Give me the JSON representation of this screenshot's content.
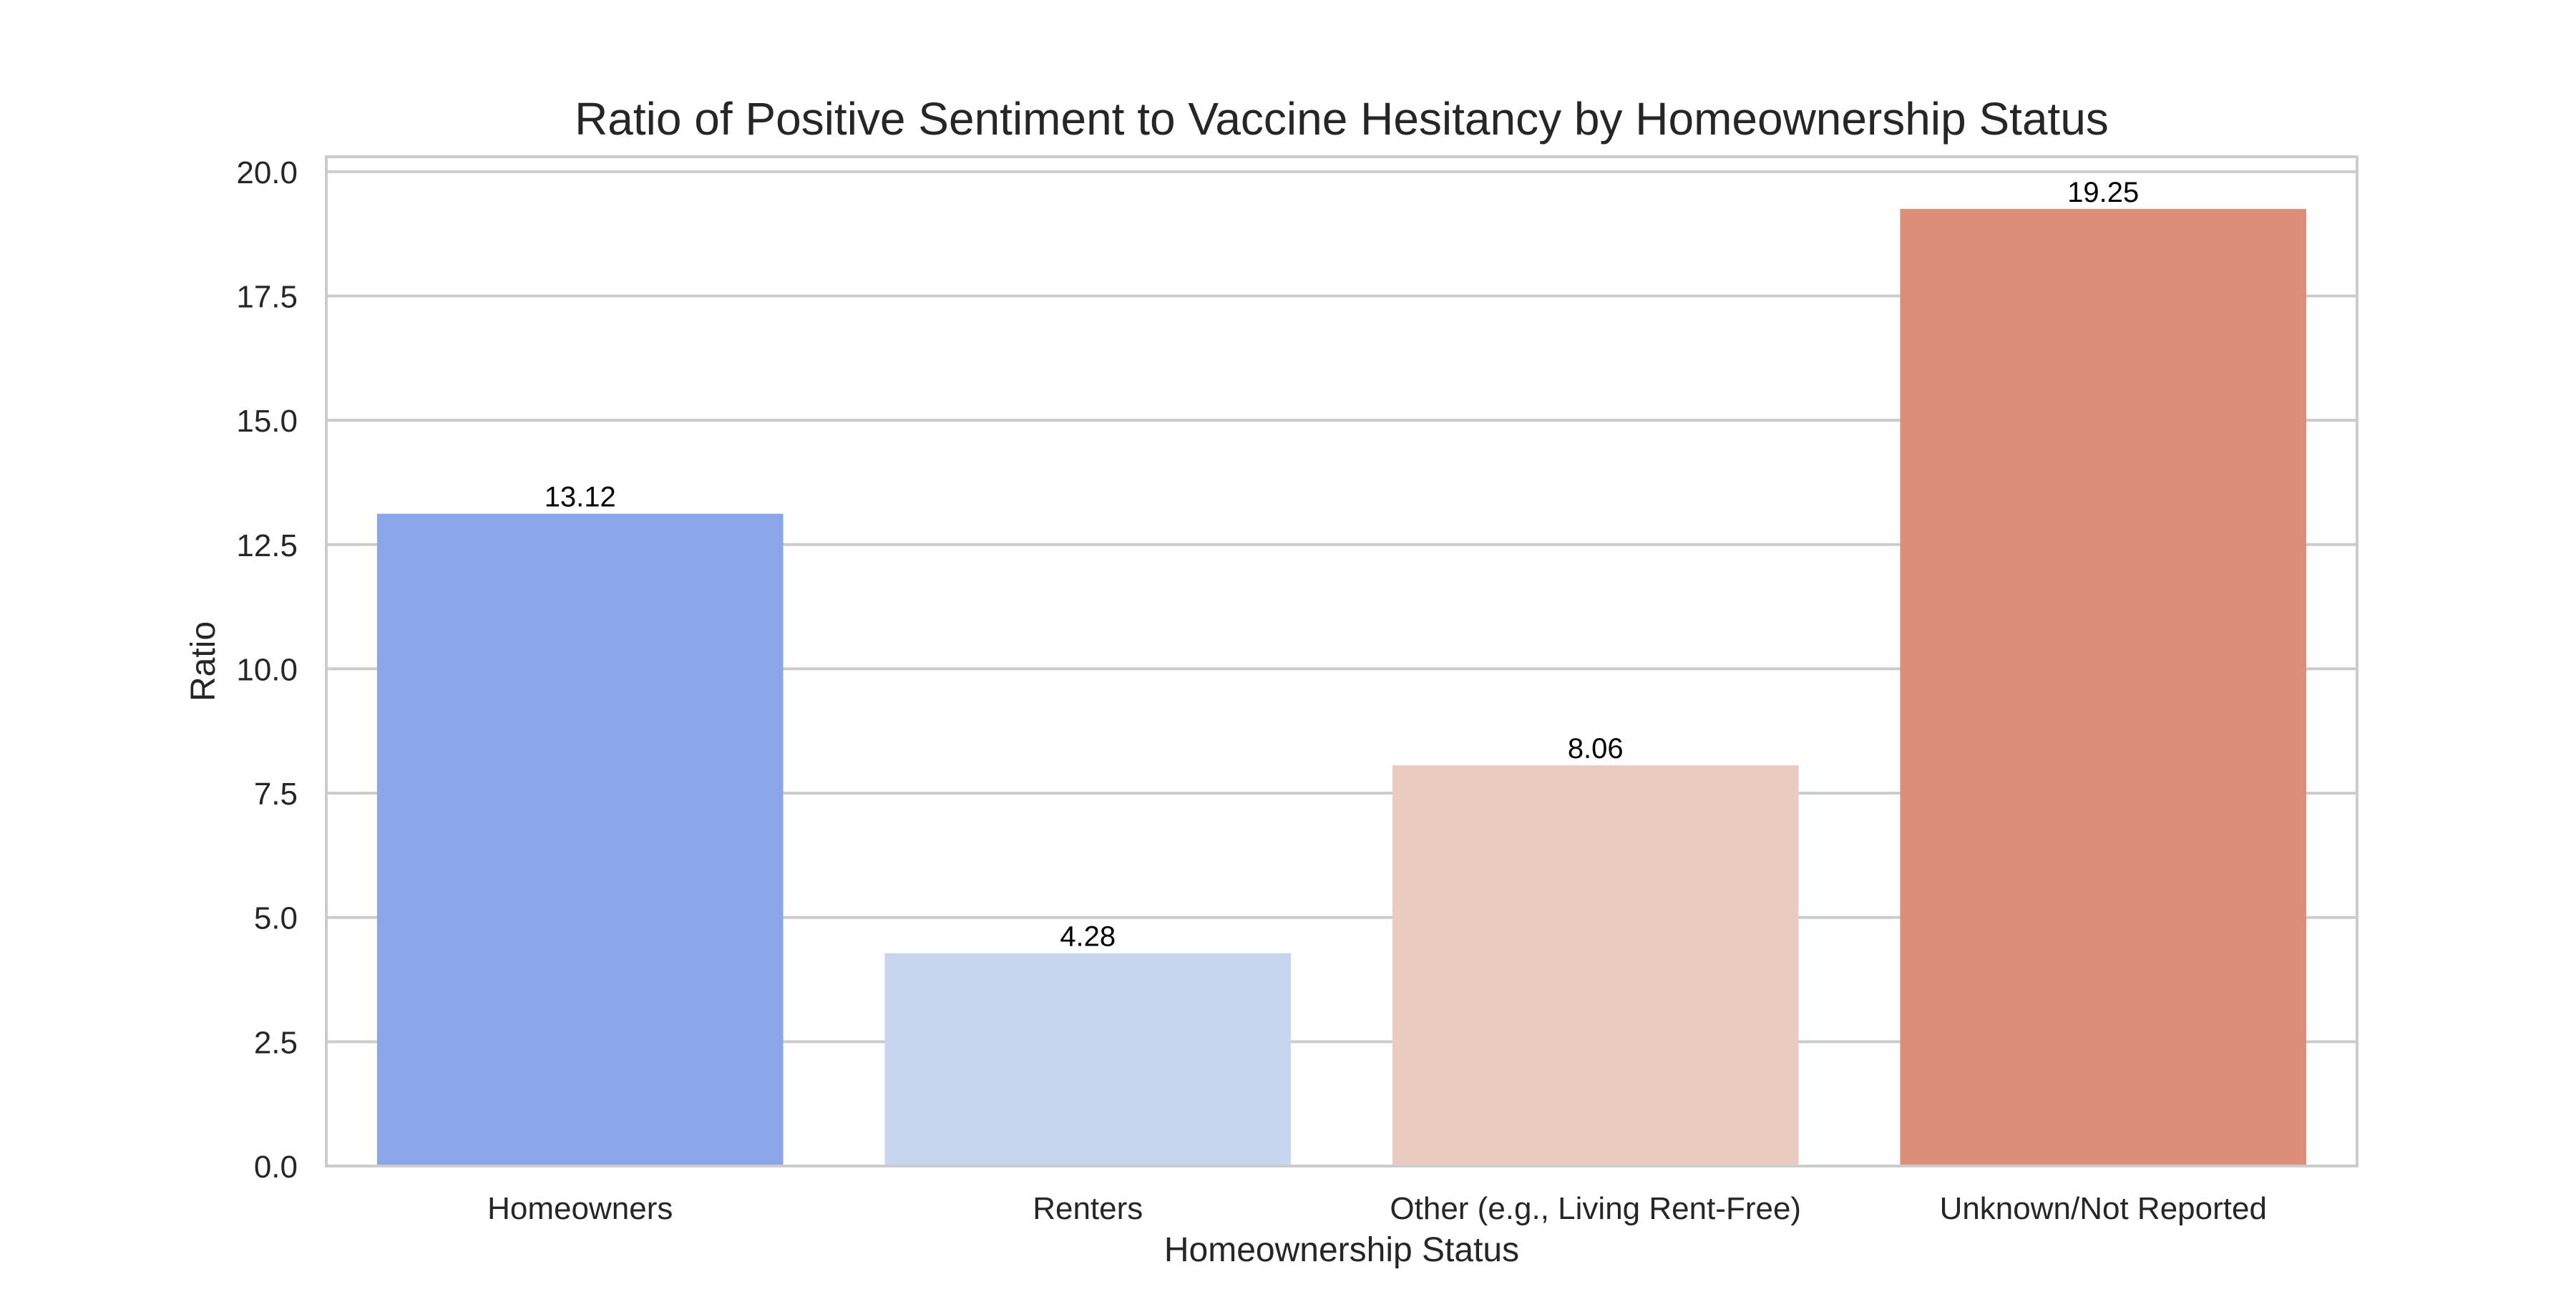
{
  "chart_data": {
    "type": "bar",
    "title": "Ratio of Positive Sentiment to Vaccine Hesitancy by Homeownership Status",
    "xlabel": "Homeownership Status",
    "ylabel": "Ratio",
    "categories": [
      "Homeowners",
      "Renters",
      "Other (e.g., Living Rent-Free)",
      "Unknown/Not Reported"
    ],
    "values": [
      13.12,
      4.28,
      8.06,
      19.25
    ],
    "value_labels": [
      "13.12",
      "4.28",
      "8.06",
      "19.25"
    ],
    "colors": [
      "#8aa6e8",
      "#c8d5ef",
      "#e9ccbf",
      "#dc8e78"
    ],
    "ylim": [
      0,
      20.3
    ],
    "yticks": [
      0,
      2.5,
      5,
      7.5,
      10,
      12.5,
      15,
      17.5,
      20
    ],
    "ytick_labels": [
      "0.0",
      "2.5",
      "5.0",
      "7.5",
      "10.0",
      "12.5",
      "15.0",
      "17.5",
      "20.0"
    ],
    "grid": true,
    "grid_axis": "y",
    "legend": "none"
  }
}
